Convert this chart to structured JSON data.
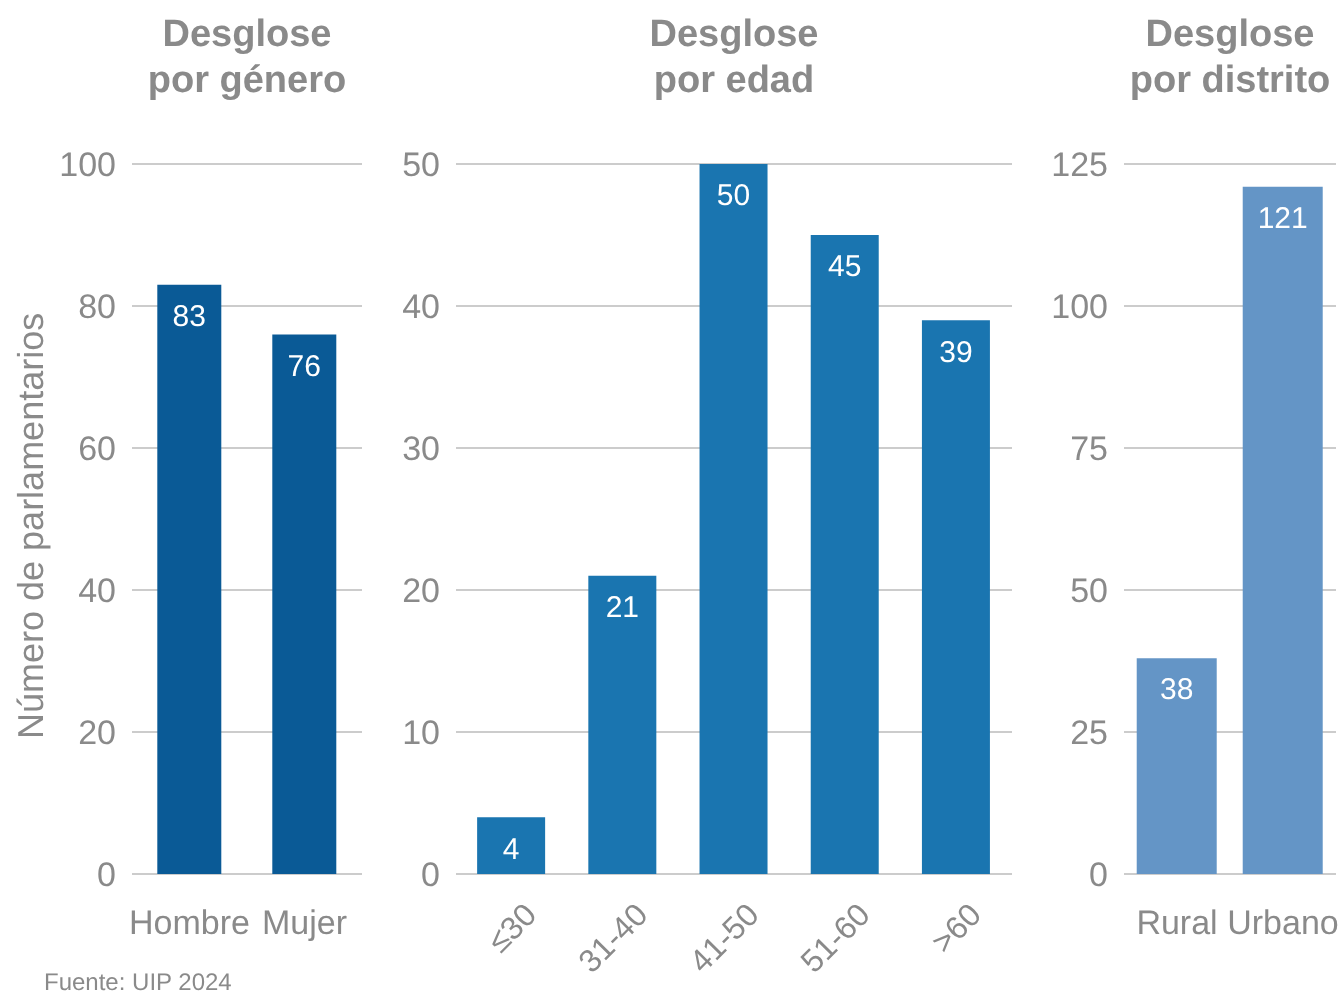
{
  "chart_data": [
    {
      "type": "bar",
      "title": "Desglose por género",
      "ylabel": "Número de parlamentarios",
      "categories": [
        "Hombre",
        "Mujer"
      ],
      "values": [
        83,
        76
      ],
      "color": "#0a5a96",
      "ylim": [
        0,
        100
      ],
      "yticks": [
        0,
        20,
        40,
        60,
        80,
        100
      ],
      "grid": "y",
      "data_labels": true,
      "annotations": [
        "Fuente: UIP 2024"
      ]
    },
    {
      "type": "bar",
      "title": "Desglose por edad",
      "categories": [
        "≤30",
        "31-40",
        "41-50",
        "51-60",
        ">60"
      ],
      "values": [
        4,
        21,
        50,
        45,
        39
      ],
      "color": "#1a75b0",
      "ylim": [
        0,
        50
      ],
      "yticks": [
        0,
        10,
        20,
        30,
        40,
        50
      ],
      "grid": "y",
      "data_labels": true
    },
    {
      "type": "bar",
      "title": "Desglose por distrito",
      "categories": [
        "Rural",
        "Urbano"
      ],
      "values": [
        38,
        121
      ],
      "color": "#6495c6",
      "ylim": [
        0,
        125
      ],
      "yticks": [
        0,
        25,
        50,
        75,
        100,
        125
      ],
      "grid": "y",
      "data_labels": true
    }
  ]
}
